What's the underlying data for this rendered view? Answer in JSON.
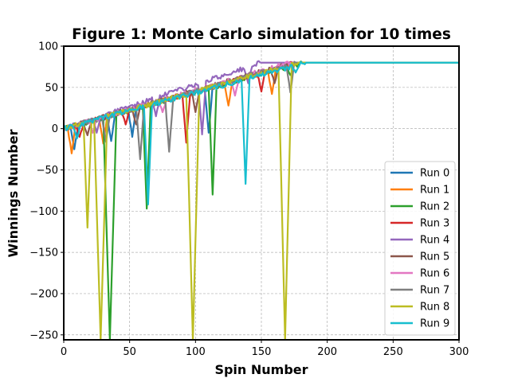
{
  "chart_data": {
    "type": "line",
    "title": "Figure 1: Monte Carlo simulation for 10 times",
    "xlabel": "Spin Number",
    "ylabel": "Winnings Number",
    "xlim": [
      0,
      300
    ],
    "ylim": [
      -256,
      100
    ],
    "xticks": [
      0,
      50,
      100,
      150,
      200,
      250,
      300
    ],
    "yticks": [
      100,
      50,
      0,
      -50,
      -100,
      -150,
      -200,
      -250
    ],
    "xtick_labels": [
      "0",
      "50",
      "100",
      "150",
      "200",
      "250",
      "300"
    ],
    "ytick_labels": [
      "100",
      "50",
      "0",
      "−50",
      "−100",
      "−150",
      "−200",
      "−250"
    ],
    "grid": true,
    "legend_position": "lower-right",
    "series": [
      {
        "name": "Run 0",
        "color": "#1f77b4",
        "reach": 180,
        "dips": [
          [
            8,
            -25
          ],
          [
            36,
            -15
          ],
          [
            52,
            -10
          ],
          [
            110,
            -5
          ]
        ]
      },
      {
        "name": "Run 1",
        "color": "#ff7f0e",
        "reach": 178,
        "dips": [
          [
            6,
            -30
          ],
          [
            30,
            -18
          ],
          [
            125,
            28
          ],
          [
            158,
            42
          ]
        ]
      },
      {
        "name": "Run 2",
        "color": "#2ca02c",
        "reach": 182,
        "dips": [
          [
            35,
            -256
          ],
          [
            63,
            -97
          ],
          [
            113,
            -80
          ],
          [
            172,
            65
          ]
        ]
      },
      {
        "name": "Run 3",
        "color": "#d62728",
        "reach": 176,
        "dips": [
          [
            12,
            -10
          ],
          [
            47,
            5
          ],
          [
            93,
            -17
          ],
          [
            150,
            45
          ]
        ]
      },
      {
        "name": "Run 4",
        "color": "#9467bd",
        "reach": 150,
        "dips": [
          [
            25,
            -5
          ],
          [
            70,
            15
          ],
          [
            105,
            -7
          ],
          [
            140,
            55
          ]
        ]
      },
      {
        "name": "Run 5",
        "color": "#8c564b",
        "reach": 174,
        "dips": [
          [
            18,
            -8
          ],
          [
            55,
            5
          ],
          [
            100,
            20
          ],
          [
            160,
            55
          ]
        ]
      },
      {
        "name": "Run 6",
        "color": "#e377c2",
        "reach": 172,
        "dips": [
          [
            22,
            -5
          ],
          [
            75,
            20
          ],
          [
            130,
            40
          ]
        ]
      },
      {
        "name": "Run 7",
        "color": "#7f7f7f",
        "reach": 176,
        "dips": [
          [
            32,
            -16
          ],
          [
            58,
            -37
          ],
          [
            80,
            -28
          ],
          [
            172,
            44
          ]
        ]
      },
      {
        "name": "Run 8",
        "color": "#bcbd22",
        "reach": 178,
        "dips": [
          [
            18,
            -120
          ],
          [
            28,
            -256
          ],
          [
            98,
            -256
          ],
          [
            168,
            -256
          ]
        ]
      },
      {
        "name": "Run 9",
        "color": "#17becf",
        "reach": 184,
        "dips": [
          [
            10,
            -12
          ],
          [
            64,
            -92
          ],
          [
            138,
            -67
          ],
          [
            176,
            68
          ]
        ]
      }
    ]
  }
}
